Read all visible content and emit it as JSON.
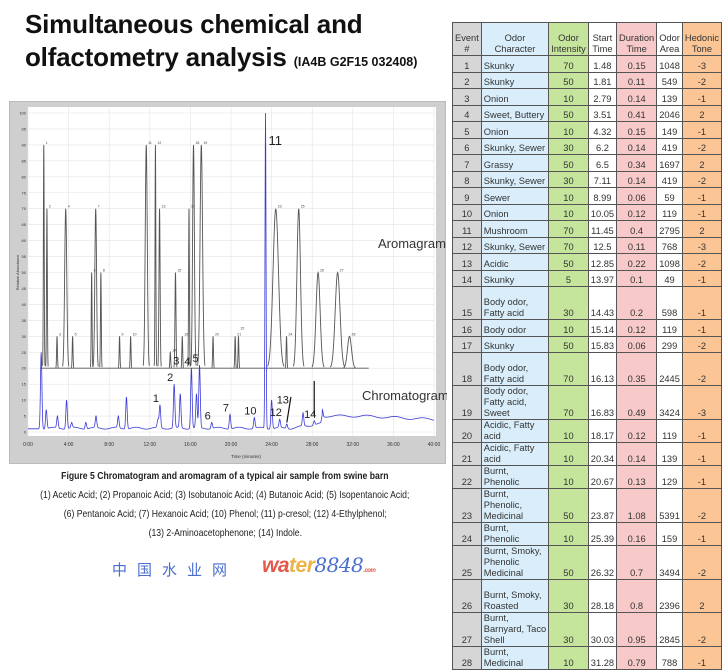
{
  "title": {
    "line1": "Simultaneous chemical and",
    "line2": "olfactometry analysis",
    "code": "(IA4B G2F15 032408)"
  },
  "caption": {
    "title": "Figure 5 Chromatogram and aromagram of a typical air sample from swine barn",
    "line1": "(1) Acetic Acid; (2) Propanoic Acid; (3) Isobutanoic Acid; (4) Butanoic Acid; (5) Isopentanoic Acid;",
    "line2": "(6) Pentanoic Acid; (7) Hexanoic Acid; (10) Phenol; (11) p-cresol; (12) 4-Ethylphenol;",
    "line3": "(13) 2-Aminoacetophenone; (14) Indole."
  },
  "chart_data": {
    "type": "line",
    "xlabel": "Time (minutes)",
    "ylabel": "Relative Abundance",
    "xlim": [
      0,
      40
    ],
    "ylim": [
      0,
      100
    ],
    "x_ticks": [
      "0:00",
      "4:00",
      "8:00",
      "12:00",
      "16:00",
      "20:00",
      "24:00",
      "28:00",
      "32:00",
      "36:00",
      "40:00"
    ],
    "y_ticks": [
      0,
      5,
      10,
      15,
      20,
      25,
      30,
      35,
      40,
      45,
      50,
      55,
      60,
      65,
      70,
      75,
      80,
      85,
      90,
      95,
      100
    ],
    "grid": true,
    "series_labels": {
      "aromagram": "Aromagram",
      "chromatogram": "Chromatogram"
    },
    "aromagram_baseline": 20,
    "aromagram_color": "#555555",
    "chromatogram_color": "#3b3bd6",
    "chromatogram_labeled_peaks": [
      {
        "label": "1",
        "time": 13.0,
        "height": 8.5
      },
      {
        "label": "2",
        "time": 14.4,
        "height": 15
      },
      {
        "label": "3",
        "time": 15.0,
        "height": 12
      },
      {
        "label": "4",
        "time": 16.1,
        "height": 20
      },
      {
        "label": "5",
        "time": 16.9,
        "height": 21
      },
      {
        "label": "6",
        "time": 18.1,
        "height": 3
      },
      {
        "label": "7",
        "time": 19.9,
        "height": 5.5
      },
      {
        "label": "10",
        "time": 22.3,
        "height": 4.5
      },
      {
        "label": "11",
        "time": 23.4,
        "height": 100
      },
      {
        "label": "12",
        "time": 24.8,
        "height": 4
      },
      {
        "label": "13",
        "time": 25.5,
        "height": 2.5
      },
      {
        "label": "14",
        "time": 28.2,
        "height": 3.5
      }
    ],
    "chromatogram_other_peaks": [
      {
        "time": 1.3,
        "height": 25
      },
      {
        "time": 1.8,
        "height": 7
      },
      {
        "time": 2.9,
        "height": 5
      },
      {
        "time": 3.8,
        "height": 10
      },
      {
        "time": 4.3,
        "height": 3
      },
      {
        "time": 5.7,
        "height": 3
      },
      {
        "time": 6.7,
        "height": 5
      },
      {
        "time": 8.9,
        "height": 5
      },
      {
        "time": 9.7,
        "height": 11
      },
      {
        "time": 12.8,
        "height": 4
      },
      {
        "time": 16.6,
        "height": 12
      },
      {
        "time": 24.0,
        "height": 10
      },
      {
        "time": 27.1,
        "height": 6
      },
      {
        "time": 29.0,
        "height": 7
      }
    ]
  },
  "table": {
    "headers": [
      "Event #",
      "Odor Character",
      "Odor Intensity",
      "Start Time",
      "Duration Time",
      "Odor Area",
      "Hedonic Tone"
    ],
    "rows": [
      [
        "1",
        "Skunky",
        "70",
        "1.48",
        "0.15",
        "1048",
        "-3"
      ],
      [
        "2",
        "Skunky",
        "50",
        "1.81",
        "0.11",
        "549",
        "-2"
      ],
      [
        "3",
        "Onion",
        "10",
        "2.79",
        "0.14",
        "139",
        "-1"
      ],
      [
        "4",
        "Sweet, Buttery",
        "50",
        "3.51",
        "0.41",
        "2046",
        "2"
      ],
      [
        "5",
        "Onion",
        "10",
        "4.32",
        "0.15",
        "149",
        "-1"
      ],
      [
        "6",
        "Skunky, Sewer",
        "30",
        "6.2",
        "0.14",
        "419",
        "-2"
      ],
      [
        "7",
        "Grassy",
        "50",
        "6.5",
        "0.34",
        "1697",
        "2"
      ],
      [
        "8",
        "Skunky, Sewer",
        "30",
        "7.11",
        "0.14",
        "419",
        "-2"
      ],
      [
        "9",
        "Sewer",
        "10",
        "8.99",
        "0.06",
        "59",
        "-1"
      ],
      [
        "10",
        "Onion",
        "10",
        "10.05",
        "0.12",
        "119",
        "-1"
      ],
      [
        "11",
        "Mushroom",
        "70",
        "11.45",
        "0.4",
        "2795",
        "2"
      ],
      [
        "12",
        "Skunky, Sewer",
        "70",
        "12.5",
        "0.11",
        "768",
        "-3"
      ],
      [
        "13",
        "Acidic",
        "50",
        "12.85",
        "0.22",
        "1098",
        "-2"
      ],
      [
        "14",
        "Skunky",
        "5",
        "13.97",
        "0.1",
        "49",
        "-1"
      ],
      [
        "15",
        "Body odor, Fatty acid",
        "30",
        "14.43",
        "0.2",
        "598",
        "-1"
      ],
      [
        "16",
        "Body odor",
        "10",
        "15.14",
        "0.12",
        "119",
        "-1"
      ],
      [
        "17",
        "Skunky",
        "50",
        "15.83",
        "0.06",
        "299",
        "-2"
      ],
      [
        "18",
        "Body odor, Fatty acid",
        "70",
        "16.13",
        "0.35",
        "2445",
        "-2"
      ],
      [
        "19",
        "Body odor, Fatty acid, Sweet",
        "70",
        "16.83",
        "0.49",
        "3424",
        "-3"
      ],
      [
        "20",
        "Acidic, Fatty acid",
        "10",
        "18.17",
        "0.12",
        "119",
        "-1"
      ],
      [
        "21",
        "Acidic, Fatty acid",
        "10",
        "20.34",
        "0.14",
        "139",
        "-1"
      ],
      [
        "22",
        "Burnt, Phenolic",
        "10",
        "20.67",
        "0.13",
        "129",
        "-1"
      ],
      [
        "23",
        "Burnt, Phenolic, Medicinal",
        "50",
        "23.87",
        "1.08",
        "5391",
        "-2"
      ],
      [
        "24",
        "Burnt, Phenolic",
        "10",
        "25.39",
        "0.16",
        "159",
        "-1"
      ],
      [
        "25",
        "Burnt, Smoky, Phenolic Medicinal",
        "50",
        "26.32",
        "0.7",
        "3494",
        "-2"
      ],
      [
        "26",
        "Burnt, Smoky, Roasted",
        "30",
        "28.18",
        "0.8",
        "2396",
        "2"
      ],
      [
        "27",
        "Burnt, Barnyard, Taco Shell",
        "30",
        "30.03",
        "0.95",
        "2845",
        "-2"
      ],
      [
        "28",
        "Burnt, Medicinal",
        "10",
        "31.28",
        "0.79",
        "788",
        "-1"
      ]
    ]
  },
  "watermark": {
    "latin": "water",
    "digits": "8848",
    "suffix": ".com",
    "chinese": "中国水业网"
  }
}
